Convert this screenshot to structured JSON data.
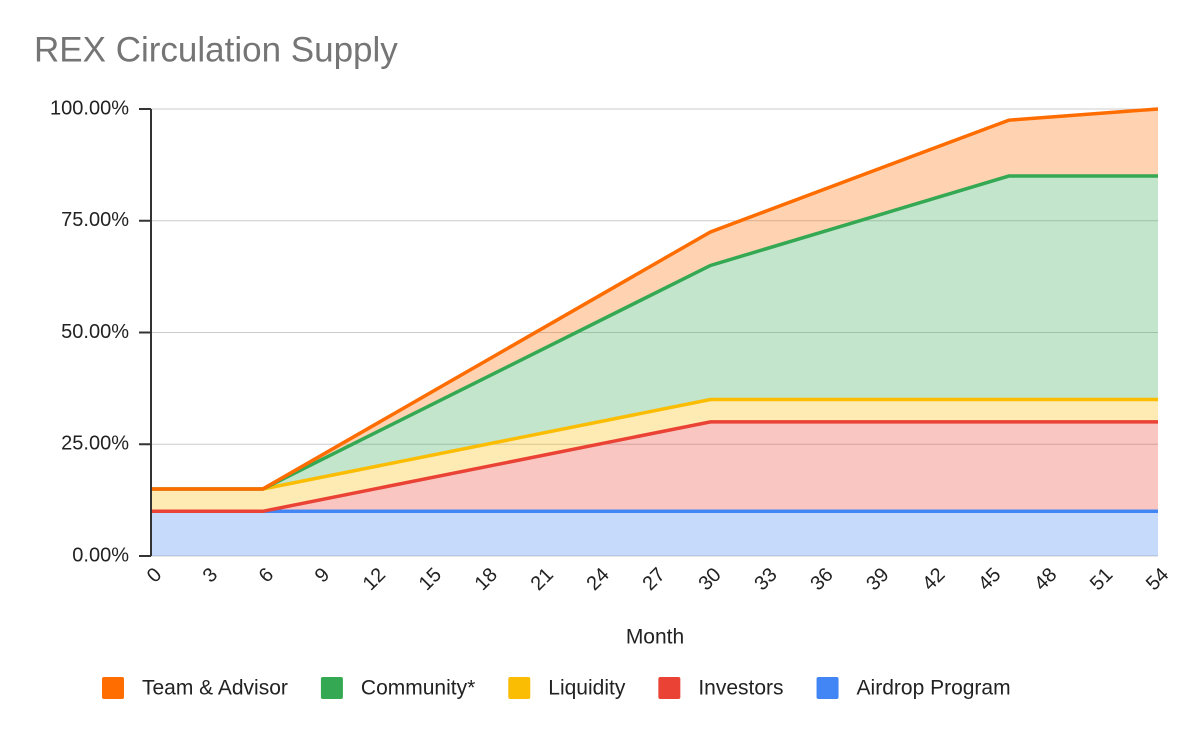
{
  "chart_data": {
    "type": "stacked_area",
    "title": "REX Circulation Supply",
    "x_label": "Month",
    "x": [
      0,
      6,
      30,
      46,
      54
    ],
    "series": [
      {
        "name": "Team & Advisor",
        "color": "#ff6d01",
        "values": [
          0,
          0,
          7.5,
          12.5,
          15
        ]
      },
      {
        "name": "Community*",
        "color": "#34a853",
        "values": [
          0,
          0,
          30,
          50,
          50
        ]
      },
      {
        "name": "Liquidity",
        "color": "#fbbc04",
        "values": [
          5,
          5,
          5,
          5,
          5
        ]
      },
      {
        "name": "Investors",
        "color": "#ea4335",
        "values": [
          0,
          0,
          20,
          20,
          20
        ]
      },
      {
        "name": "Airdrop Program",
        "color": "#4285f4",
        "values": [
          10,
          10,
          10,
          10,
          10
        ]
      }
    ],
    "xlim": [
      0,
      54
    ],
    "xticks": [
      0,
      3,
      6,
      9,
      12,
      15,
      18,
      21,
      24,
      27,
      30,
      33,
      36,
      39,
      42,
      45,
      48,
      51,
      54
    ],
    "ylim": [
      0,
      100
    ],
    "yticks": [
      {
        "value": 0,
        "label": "0.00%"
      },
      {
        "value": 25,
        "label": "25.00%"
      },
      {
        "value": 50,
        "label": "50.00%"
      },
      {
        "value": 75,
        "label": "75.00%"
      },
      {
        "value": 100,
        "label": "100.00%"
      }
    ],
    "grid": true,
    "legend": "bottom"
  }
}
